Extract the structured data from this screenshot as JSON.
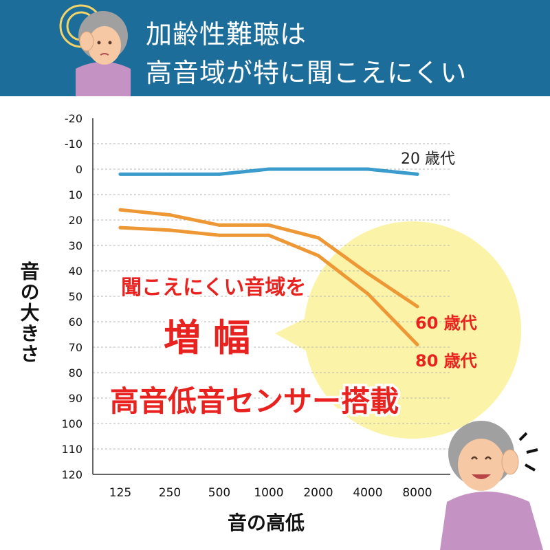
{
  "header": {
    "title_line1": "加齢性難聴は",
    "title_line2": "高音域が特に聞こえにくい"
  },
  "callout": {
    "line1": "聞こえにくい音域を",
    "line2": "増幅",
    "line3": "高音低音センサー搭載"
  },
  "colors": {
    "banner": "#1d6d9a",
    "series_20s": "#3a9ccc",
    "series_60s": "#ee9735",
    "series_80s": "#ee9735",
    "callout_bg": "#fbf3a7",
    "callout_text": "#e8231f"
  },
  "chart_data": {
    "type": "line",
    "title": "",
    "xlabel": "音の高低",
    "ylabel": "音の大きさ",
    "categories": [
      "125",
      "250",
      "500",
      "1000",
      "2000",
      "4000",
      "8000"
    ],
    "y_ticks": [
      "-20",
      "-10",
      "0",
      "10",
      "20",
      "30",
      "40",
      "50",
      "60",
      "70",
      "80",
      "90",
      "100",
      "110",
      "120"
    ],
    "ylim": [
      -20,
      120
    ],
    "y_inverted": true,
    "grid": true,
    "series": [
      {
        "name": "20 歳代",
        "values": [
          2,
          2,
          2,
          0,
          0,
          0,
          2
        ]
      },
      {
        "name": "60 歳代",
        "values": [
          16,
          18,
          22,
          22,
          27,
          41,
          54
        ]
      },
      {
        "name": "80 歳代",
        "values": [
          23,
          24,
          26,
          26,
          34,
          49,
          69
        ]
      }
    ]
  }
}
